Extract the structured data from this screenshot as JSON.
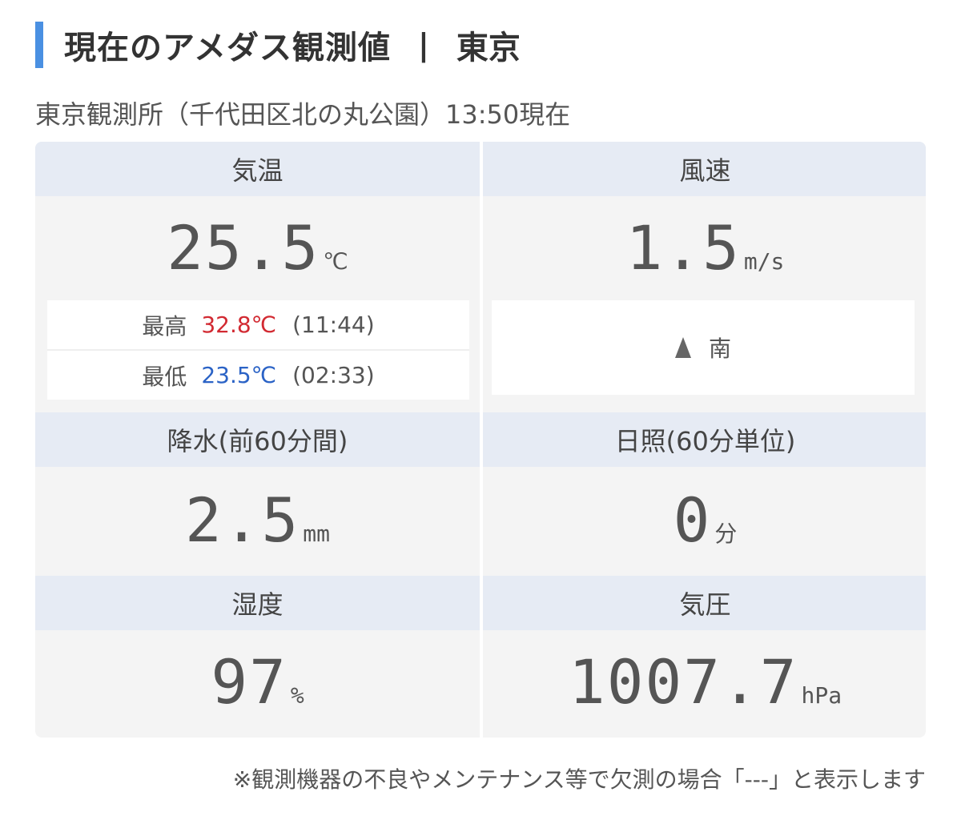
{
  "header": {
    "title": "現在のアメダス観測値",
    "separator": "|",
    "city": "東京"
  },
  "station": "東京観測所（千代田区北の丸公園）13:50現在",
  "accent_color": "#4a90e2",
  "cells": {
    "temperature": {
      "label": "気温",
      "value": "25.5",
      "unit": "℃",
      "high_label": "最高",
      "high_value": "32.8℃",
      "high_time": "(11:44)",
      "low_label": "最低",
      "low_value": "23.5℃",
      "low_time": "(02:33)",
      "high_color": "#d22a32",
      "low_color": "#2b63c6"
    },
    "wind": {
      "label": "風速",
      "value": "1.5",
      "unit": "m/s",
      "direction": "南",
      "direction_icon": "up-arrow-icon"
    },
    "precipitation": {
      "label": "降水(前60分間)",
      "value": "2.5",
      "unit": "mm"
    },
    "sunshine": {
      "label": "日照(60分単位)",
      "value": "0",
      "unit": "分"
    },
    "humidity": {
      "label": "湿度",
      "value": "97",
      "unit": "%"
    },
    "pressure": {
      "label": "気圧",
      "value": "1007.7",
      "unit": "hPa"
    }
  },
  "footnote": "※観測機器の不良やメンテナンス等で欠測の場合「---」と表示します"
}
